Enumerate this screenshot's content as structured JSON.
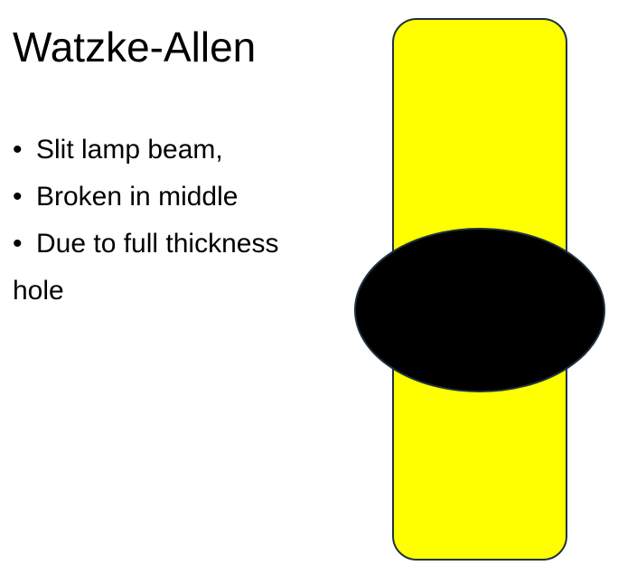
{
  "slide": {
    "title": "Watzke-Allen",
    "bullets": [
      {
        "marker": "•",
        "text": "Slit lamp beam,"
      },
      {
        "marker": "•",
        "text": "Broken in middle"
      },
      {
        "marker": "•",
        "text": "Due to full thickness"
      }
    ],
    "bullet_continuation": "hole"
  },
  "diagram": {
    "beam_color": "#ffff00",
    "beam_stroke": "#1f3140",
    "hole_color": "#000000"
  }
}
